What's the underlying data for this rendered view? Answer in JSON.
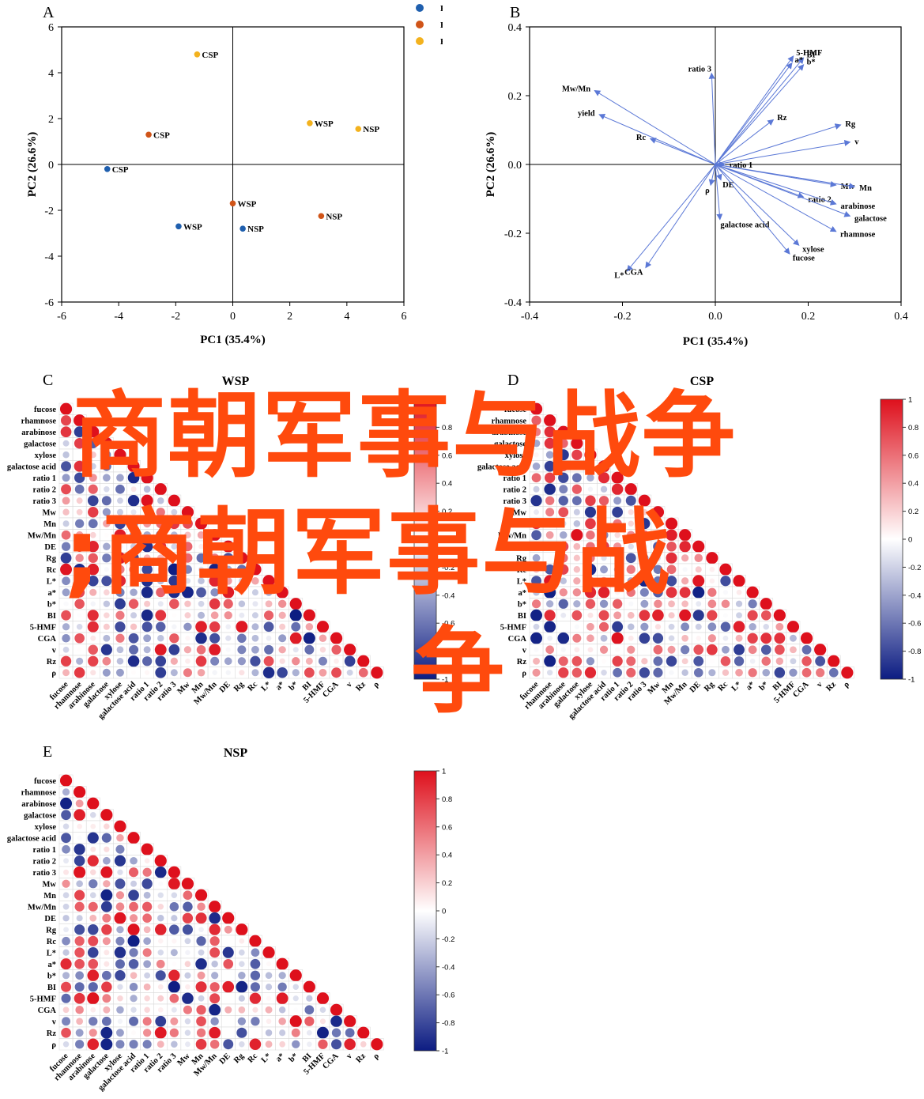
{
  "panels": {
    "A": {
      "letter": "A",
      "type": "scatter",
      "xlabel": "PC1 (35.4%)",
      "ylabel": "PC2 (26.6%)",
      "xlim": [
        -6,
        6
      ],
      "ylim": [
        -6,
        6
      ],
      "xticks": [
        -6,
        -4,
        -2,
        0,
        2,
        4,
        6
      ],
      "yticks": [
        -6,
        -4,
        -2,
        0,
        2,
        4,
        6
      ],
      "legend": [
        {
          "name": "FD",
          "color": "#1f5fae"
        },
        {
          "name": "HPD60",
          "color": "#d05418"
        },
        {
          "name": "HPD90",
          "color": "#f3b21e"
        }
      ],
      "points": [
        {
          "label": "CSP",
          "group": "FD",
          "x": -4.4,
          "y": -0.2
        },
        {
          "label": "WSP",
          "group": "FD",
          "x": -1.9,
          "y": -2.7
        },
        {
          "label": "NSP",
          "group": "FD",
          "x": 0.35,
          "y": -2.8
        },
        {
          "label": "CSP",
          "group": "HPD60",
          "x": -2.95,
          "y": 1.3
        },
        {
          "label": "WSP",
          "group": "HPD60",
          "x": 0.0,
          "y": -1.7
        },
        {
          "label": "NSP",
          "group": "HPD60",
          "x": 3.1,
          "y": -2.25
        },
        {
          "label": "CSP",
          "group": "HPD90",
          "x": -1.25,
          "y": 4.8
        },
        {
          "label": "WSP",
          "group": "HPD90",
          "x": 2.7,
          "y": 1.8
        },
        {
          "label": "NSP",
          "group": "HPD90",
          "x": 4.4,
          "y": 1.55
        }
      ]
    },
    "B": {
      "letter": "B",
      "type": "biplot",
      "xlabel": "PC1 (35.4%)",
      "ylabel": "PC2 (26.6%)",
      "xlim": [
        -0.4,
        0.4
      ],
      "ylim": [
        -0.4,
        0.4
      ],
      "xticks": [
        -0.4,
        -0.2,
        0.0,
        0.2,
        0.4
      ],
      "yticks": [
        -0.4,
        -0.2,
        0.0,
        0.2,
        0.4
      ],
      "tick_labels": [
        "-0.4",
        "-0.2",
        "0.0",
        "0.2",
        "0.4"
      ],
      "arrow_color": "#5b78d6",
      "vectors": [
        {
          "name": "5-HMF",
          "x": 0.168,
          "y": 0.315
        },
        {
          "name": "BI",
          "x": 0.19,
          "y": 0.31
        },
        {
          "name": "a*",
          "x": 0.165,
          "y": 0.295
        },
        {
          "name": "b*",
          "x": 0.19,
          "y": 0.29
        },
        {
          "name": "ratio 3",
          "x": -0.008,
          "y": 0.265
        },
        {
          "name": "Mw/Mn",
          "x": -0.26,
          "y": 0.215
        },
        {
          "name": "yield",
          "x": -0.25,
          "y": 0.145
        },
        {
          "name": "Rc",
          "x": -0.14,
          "y": 0.075
        },
        {
          "name": "Rz",
          "x": 0.125,
          "y": 0.13
        },
        {
          "name": "Rg",
          "x": 0.27,
          "y": 0.115
        },
        {
          "name": "v",
          "x": 0.29,
          "y": 0.065
        },
        {
          "name": "ratio 1",
          "x": 0.02,
          "y": 0.0
        },
        {
          "name": "DE",
          "x": 0.012,
          "y": -0.045
        },
        {
          "name": "ρ",
          "x": -0.01,
          "y": -0.06
        },
        {
          "name": "Mw",
          "x": 0.26,
          "y": -0.06
        },
        {
          "name": "Mn",
          "x": 0.3,
          "y": -0.065
        },
        {
          "name": "ratio 2",
          "x": 0.19,
          "y": -0.095
        },
        {
          "name": "arabinose",
          "x": 0.26,
          "y": -0.115
        },
        {
          "name": "galactose",
          "x": 0.29,
          "y": -0.15
        },
        {
          "name": "rhamnose",
          "x": 0.26,
          "y": -0.195
        },
        {
          "name": "galactose acid",
          "x": 0.01,
          "y": -0.16
        },
        {
          "name": "xylose",
          "x": 0.18,
          "y": -0.235
        },
        {
          "name": "fucose",
          "x": 0.16,
          "y": -0.26
        },
        {
          "name": "L*",
          "x": -0.19,
          "y": -0.31
        },
        {
          "name": "CGA",
          "x": -0.15,
          "y": -0.3
        }
      ]
    },
    "C": {
      "letter": "C",
      "title": "WSP"
    },
    "D": {
      "letter": "D",
      "title": "CSP"
    },
    "E": {
      "letter": "E",
      "title": "NSP"
    }
  },
  "heatmap_vars": [
    "fucose",
    "rhamnose",
    "arabinose",
    "galactose",
    "xylose",
    "galactose acid",
    "ratio 1",
    "ratio 2",
    "ratio 3",
    "Mw",
    "Mn",
    "Mw/Mn",
    "DE",
    "Rg",
    "Rc",
    "L*",
    "a*",
    "b*",
    "BI",
    "5-HMF",
    "CGA",
    "v",
    "Rz",
    "ρ"
  ],
  "colorbar_ticks": [
    "1",
    "0.8",
    "0.6",
    "0.4",
    "0.2",
    "0",
    "-0.2",
    "-0.4",
    "-0.6",
    "-0.8",
    "-1"
  ],
  "chart_data": [
    {
      "type": "scatter",
      "xlabel": "PC1 (35.4%)",
      "ylabel": "PC2 (26.6%)",
      "xlim": [
        -6,
        6
      ],
      "ylim": [
        -6,
        6
      ],
      "series": [
        {
          "name": "FD",
          "x": [
            -4.4,
            -1.9,
            0.35
          ],
          "y": [
            -0.2,
            -2.7,
            -2.8
          ]
        },
        {
          "name": "HPD60",
          "x": [
            -2.95,
            0.0,
            3.1
          ],
          "y": [
            1.3,
            -1.7,
            -2.25
          ]
        },
        {
          "name": "HPD90",
          "x": [
            -1.25,
            2.7,
            4.4
          ],
          "y": [
            4.8,
            1.8,
            1.55
          ]
        }
      ]
    },
    {
      "type": "heatmap",
      "title": "WSP"
    },
    {
      "type": "heatmap",
      "title": "CSP"
    },
    {
      "type": "heatmap",
      "title": "NSP"
    }
  ],
  "watermark": {
    "line1": "商朝军事与战争",
    "line2": ";商朝军事与战",
    "line3": "争"
  }
}
